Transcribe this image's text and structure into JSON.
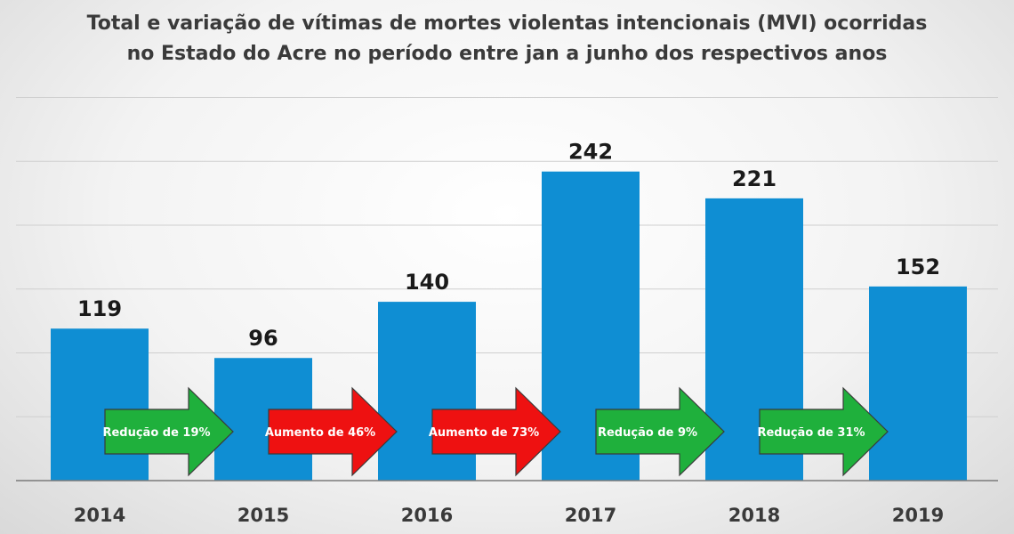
{
  "chart_data": {
    "type": "bar",
    "title_line1": "Total e variação de vítimas de mortes violentas intencionais (MVI) ocorridas",
    "title_line2": "no Estado do Acre no período entre jan a junho dos respectivos anos",
    "categories": [
      "2014",
      "2015",
      "2016",
      "2017",
      "2018",
      "2019"
    ],
    "values": [
      119,
      96,
      140,
      242,
      221,
      152
    ],
    "ylim": [
      0,
      300
    ],
    "grid": true,
    "bar_color": "#0f8ed3",
    "changes": [
      {
        "label": "Redução de 19%",
        "kind": "decrease",
        "color": "#1fb03c"
      },
      {
        "label": "Aumento de 46%",
        "kind": "increase",
        "color": "#ee1111"
      },
      {
        "label": "Aumento de 73%",
        "kind": "increase",
        "color": "#ee1111"
      },
      {
        "label": "Redução de 9%",
        "kind": "decrease",
        "color": "#1fb03c"
      },
      {
        "label": "Redução de 31%",
        "kind": "decrease",
        "color": "#1fb03c"
      }
    ]
  }
}
